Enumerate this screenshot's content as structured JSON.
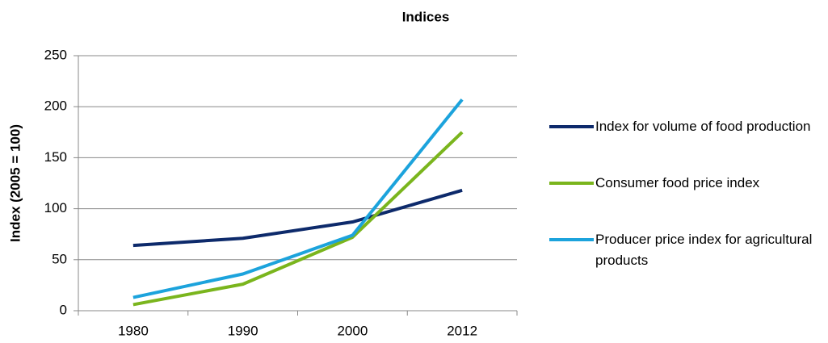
{
  "chart_data": {
    "type": "line",
    "title": "Indices",
    "y_label": "Index (2005 = 100)",
    "categories": [
      "1980",
      "1990",
      "2000",
      "2012"
    ],
    "series": [
      {
        "name": "Index for volume of food production",
        "color": "#0d2a6b",
        "values": [
          64,
          71,
          87,
          118
        ]
      },
      {
        "name": "Consumer food price index",
        "color": "#7ab51d",
        "values": [
          6,
          26,
          72,
          175
        ]
      },
      {
        "name": "Producer price index for agricultural products",
        "color": "#1ca3dc",
        "values": [
          13,
          36,
          74,
          207
        ]
      }
    ],
    "ylim": [
      0,
      250
    ],
    "yticks": [
      0,
      50,
      100,
      150,
      200,
      250
    ],
    "grid": true,
    "legend": "right"
  }
}
